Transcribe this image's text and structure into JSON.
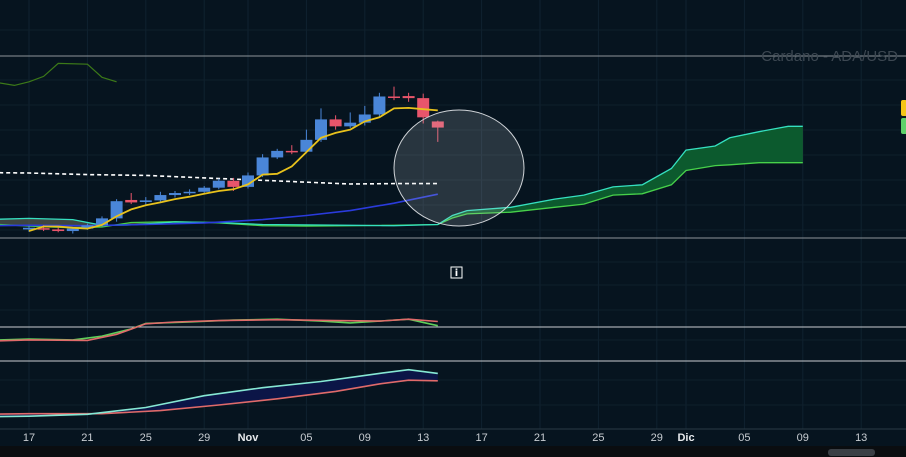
{
  "chart_data": {
    "type": "candlestick",
    "title": "Cardano - ADA/USD",
    "x_ticks": [
      {
        "i": 0,
        "label": "17"
      },
      {
        "i": 4,
        "label": "21"
      },
      {
        "i": 8,
        "label": "25"
      },
      {
        "i": 12,
        "label": "29"
      },
      {
        "i": 15,
        "label": "Nov",
        "month": true
      },
      {
        "i": 19,
        "label": "05"
      },
      {
        "i": 23,
        "label": "09"
      },
      {
        "i": 27,
        "label": "13"
      },
      {
        "i": 31,
        "label": "17"
      },
      {
        "i": 35,
        "label": "21"
      },
      {
        "i": 39,
        "label": "25"
      },
      {
        "i": 43,
        "label": "29"
      },
      {
        "i": 45,
        "label": "Dic",
        "month": true
      },
      {
        "i": 49,
        "label": "05"
      },
      {
        "i": 53,
        "label": "09"
      },
      {
        "i": 57,
        "label": "13"
      }
    ],
    "x_range": [
      -2,
      60
    ],
    "y_range": [
      2.65,
      7.1
    ],
    "candles": [
      {
        "i": 0,
        "o": 2.86,
        "h": 2.95,
        "l": 2.8,
        "c": 2.9
      },
      {
        "i": 1,
        "o": 2.89,
        "h": 2.96,
        "l": 2.82,
        "c": 2.86
      },
      {
        "i": 2,
        "o": 2.86,
        "h": 2.93,
        "l": 2.79,
        "c": 2.82
      },
      {
        "i": 3,
        "o": 2.82,
        "h": 2.91,
        "l": 2.76,
        "c": 2.88
      },
      {
        "i": 4,
        "o": 2.88,
        "h": 3.0,
        "l": 2.85,
        "c": 2.96
      },
      {
        "i": 5,
        "o": 2.96,
        "h": 3.18,
        "l": 2.93,
        "c": 3.13
      },
      {
        "i": 6,
        "o": 3.13,
        "h": 3.6,
        "l": 3.05,
        "c": 3.55
      },
      {
        "i": 7,
        "o": 3.58,
        "h": 3.75,
        "l": 3.48,
        "c": 3.52
      },
      {
        "i": 8,
        "o": 3.53,
        "h": 3.65,
        "l": 3.46,
        "c": 3.57
      },
      {
        "i": 9,
        "o": 3.57,
        "h": 3.78,
        "l": 3.52,
        "c": 3.7
      },
      {
        "i": 10,
        "o": 3.7,
        "h": 3.8,
        "l": 3.64,
        "c": 3.75
      },
      {
        "i": 11,
        "o": 3.75,
        "h": 3.84,
        "l": 3.7,
        "c": 3.78
      },
      {
        "i": 12,
        "o": 3.78,
        "h": 3.92,
        "l": 3.74,
        "c": 3.88
      },
      {
        "i": 13,
        "o": 3.88,
        "h": 4.1,
        "l": 3.84,
        "c": 4.05
      },
      {
        "i": 14,
        "o": 4.05,
        "h": 4.12,
        "l": 3.8,
        "c": 3.9
      },
      {
        "i": 15,
        "o": 3.9,
        "h": 4.25,
        "l": 3.86,
        "c": 4.18
      },
      {
        "i": 16,
        "o": 4.18,
        "h": 4.7,
        "l": 4.14,
        "c": 4.62
      },
      {
        "i": 17,
        "o": 4.62,
        "h": 4.83,
        "l": 4.58,
        "c": 4.78
      },
      {
        "i": 18,
        "o": 4.78,
        "h": 4.92,
        "l": 4.7,
        "c": 4.76
      },
      {
        "i": 19,
        "o": 4.76,
        "h": 5.3,
        "l": 4.72,
        "c": 5.05
      },
      {
        "i": 20,
        "o": 5.05,
        "h": 5.82,
        "l": 5.0,
        "c": 5.55
      },
      {
        "i": 21,
        "o": 5.55,
        "h": 5.65,
        "l": 5.3,
        "c": 5.38
      },
      {
        "i": 22,
        "o": 5.38,
        "h": 5.72,
        "l": 5.34,
        "c": 5.47
      },
      {
        "i": 23,
        "o": 5.47,
        "h": 5.88,
        "l": 5.4,
        "c": 5.67
      },
      {
        "i": 24,
        "o": 5.67,
        "h": 6.2,
        "l": 5.62,
        "c": 6.11
      },
      {
        "i": 25,
        "o": 6.11,
        "h": 6.35,
        "l": 6.02,
        "c": 6.08
      },
      {
        "i": 26,
        "o": 6.12,
        "h": 6.2,
        "l": 5.98,
        "c": 6.07
      },
      {
        "i": 27,
        "o": 6.07,
        "h": 6.18,
        "l": 5.45,
        "c": 5.6
      },
      {
        "i": 28,
        "o": 5.5,
        "h": 5.52,
        "l": 5.0,
        "c": 5.35
      }
    ],
    "ma_yellow": [
      [
        0,
        2.82
      ],
      [
        1,
        2.93
      ],
      [
        2,
        2.93
      ],
      [
        3,
        2.9
      ],
      [
        4,
        2.88
      ],
      [
        5,
        2.97
      ],
      [
        6,
        3.18
      ],
      [
        7,
        3.35
      ],
      [
        8,
        3.45
      ],
      [
        9,
        3.52
      ],
      [
        10,
        3.6
      ],
      [
        11,
        3.66
      ],
      [
        12,
        3.73
      ],
      [
        13,
        3.8
      ],
      [
        14,
        3.84
      ],
      [
        15,
        3.96
      ],
      [
        16,
        4.2
      ],
      [
        17,
        4.22
      ],
      [
        18,
        4.4
      ],
      [
        19,
        4.75
      ],
      [
        20,
        5.1
      ],
      [
        21,
        5.22
      ],
      [
        22,
        5.3
      ],
      [
        23,
        5.5
      ],
      [
        24,
        5.6
      ],
      [
        25,
        5.82
      ],
      [
        26,
        5.83
      ],
      [
        27,
        5.8
      ],
      [
        28,
        5.77
      ]
    ],
    "ma_blue": [
      [
        -3,
        2.95
      ],
      [
        0,
        2.96
      ],
      [
        4,
        2.95
      ],
      [
        8,
        2.98
      ],
      [
        12,
        3.02
      ],
      [
        16,
        3.1
      ],
      [
        19,
        3.2
      ],
      [
        22,
        3.32
      ],
      [
        25,
        3.5
      ],
      [
        28,
        3.72
      ]
    ],
    "ma_white_dashed": [
      [
        -3,
        4.25
      ],
      [
        0,
        4.24
      ],
      [
        4,
        4.2
      ],
      [
        8,
        4.18
      ],
      [
        12,
        4.12
      ],
      [
        16,
        4.06
      ],
      [
        20,
        4.0
      ],
      [
        22,
        3.97
      ],
      [
        25,
        3.98
      ],
      [
        28,
        3.98
      ]
    ],
    "lagging_line": [
      [
        -3,
        6.7
      ],
      [
        -2,
        6.44
      ],
      [
        -1,
        6.38
      ],
      [
        0,
        6.47
      ],
      [
        1,
        6.6
      ],
      [
        2,
        6.92
      ],
      [
        4,
        6.9
      ],
      [
        5,
        6.58
      ],
      [
        6,
        6.47
      ]
    ],
    "cloud_upper": [
      [
        -3,
        3.1
      ],
      [
        0,
        3.13
      ],
      [
        3,
        3.1
      ],
      [
        5,
        2.96
      ],
      [
        7,
        2.97
      ],
      [
        10,
        3.04
      ],
      [
        13,
        3.03
      ],
      [
        16,
        2.98
      ],
      [
        19,
        2.97
      ],
      [
        22,
        2.96
      ],
      [
        25,
        2.95
      ],
      [
        28,
        2.98
      ],
      [
        29,
        3.2
      ],
      [
        30,
        3.32
      ],
      [
        33,
        3.4
      ],
      [
        36,
        3.6
      ],
      [
        38,
        3.7
      ],
      [
        40,
        3.9
      ],
      [
        42,
        3.95
      ],
      [
        44,
        4.35
      ],
      [
        45,
        4.8
      ],
      [
        47,
        4.9
      ],
      [
        48,
        5.1
      ],
      [
        50,
        5.25
      ],
      [
        52,
        5.38
      ],
      [
        53,
        5.38
      ]
    ],
    "cloud_lower": [
      [
        -3,
        3.0
      ],
      [
        0,
        2.94
      ],
      [
        3,
        2.9
      ],
      [
        5,
        2.92
      ],
      [
        7,
        3.03
      ],
      [
        10,
        3.05
      ],
      [
        13,
        3.02
      ],
      [
        16,
        2.95
      ],
      [
        19,
        2.94
      ],
      [
        22,
        2.95
      ],
      [
        25,
        2.96
      ],
      [
        28,
        2.98
      ],
      [
        29,
        3.14
      ],
      [
        30,
        3.24
      ],
      [
        33,
        3.28
      ],
      [
        36,
        3.4
      ],
      [
        38,
        3.48
      ],
      [
        40,
        3.7
      ],
      [
        42,
        3.73
      ],
      [
        44,
        3.95
      ],
      [
        45,
        4.3
      ],
      [
        47,
        4.42
      ],
      [
        48,
        4.44
      ],
      [
        50,
        4.49
      ],
      [
        52,
        4.49
      ],
      [
        53,
        4.49
      ]
    ],
    "osc1_red": [
      [
        -3,
        0.45
      ],
      [
        0,
        0.48
      ],
      [
        4,
        0.47
      ],
      [
        6,
        0.6
      ],
      [
        8,
        0.83
      ],
      [
        10,
        0.87
      ],
      [
        13,
        0.9
      ],
      [
        17,
        0.92
      ],
      [
        21,
        0.9
      ],
      [
        24,
        0.89
      ],
      [
        26,
        0.93
      ],
      [
        28,
        0.88
      ]
    ],
    "osc1_green": [
      [
        -3,
        0.47
      ],
      [
        0,
        0.5
      ],
      [
        3,
        0.48
      ],
      [
        5,
        0.56
      ],
      [
        7,
        0.72
      ],
      [
        8,
        0.84
      ],
      [
        11,
        0.87
      ],
      [
        14,
        0.91
      ],
      [
        17,
        0.93
      ],
      [
        20,
        0.89
      ],
      [
        22,
        0.85
      ],
      [
        24,
        0.89
      ],
      [
        26,
        0.93
      ],
      [
        28,
        0.79
      ]
    ],
    "osc2_red": [
      [
        -3,
        0.14
      ],
      [
        0,
        0.15
      ],
      [
        5,
        0.15
      ],
      [
        9,
        0.2
      ],
      [
        13,
        0.29
      ],
      [
        17,
        0.39
      ],
      [
        21,
        0.51
      ],
      [
        24,
        0.63
      ],
      [
        26,
        0.69
      ],
      [
        28,
        0.68
      ]
    ],
    "osc2_teal": [
      [
        -3,
        0.1
      ],
      [
        0,
        0.11
      ],
      [
        4,
        0.14
      ],
      [
        8,
        0.25
      ],
      [
        12,
        0.44
      ],
      [
        16,
        0.57
      ],
      [
        20,
        0.67
      ],
      [
        24,
        0.8
      ],
      [
        26,
        0.86
      ],
      [
        28,
        0.8
      ]
    ]
  }
}
